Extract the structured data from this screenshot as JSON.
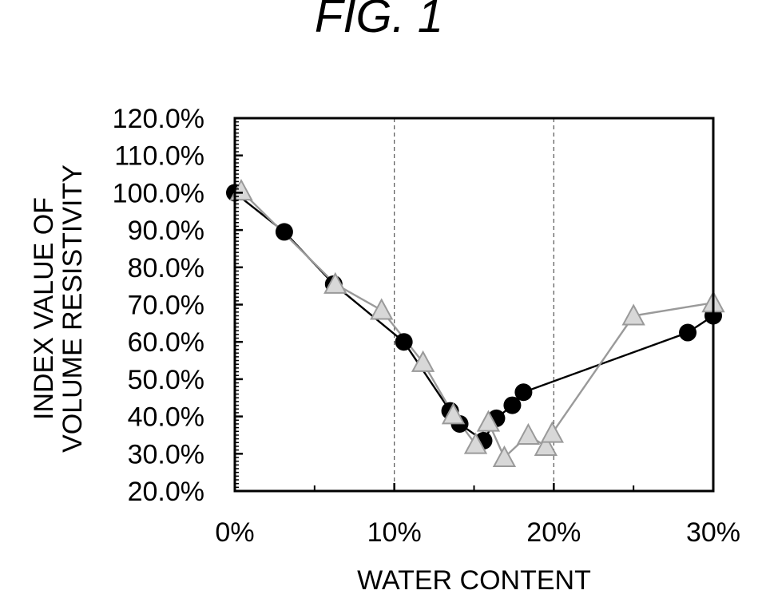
{
  "figure": {
    "title": "FIG. 1"
  },
  "chart_data": {
    "type": "line",
    "title": "FIG. 1",
    "xlabel": "WATER CONTENT",
    "ylabel_lines": [
      "INDEX VALUE OF",
      "VOLUME RESISTIVITY"
    ],
    "xlim": [
      0,
      30
    ],
    "ylim": [
      20,
      120
    ],
    "x_ticks": [
      0,
      10,
      20,
      30
    ],
    "x_tick_labels": [
      "0%",
      "10%",
      "20%",
      "30%"
    ],
    "y_ticks": [
      20,
      30,
      40,
      50,
      60,
      70,
      80,
      90,
      100,
      110,
      120
    ],
    "y_tick_labels": [
      "20.0%",
      "30.0%",
      "40.0%",
      "50.0%",
      "60.0%",
      "70.0%",
      "80.0%",
      "90.0%",
      "100.0%",
      "110.0%",
      "120.0%"
    ],
    "vertical_gridlines": [
      10,
      20
    ],
    "series": [
      {
        "name": "circle-series",
        "marker": "circle",
        "color": "#000000",
        "points": [
          [
            0,
            100
          ],
          [
            3.1,
            89.5
          ],
          [
            6.2,
            75.5
          ],
          [
            10.6,
            60
          ],
          [
            13.5,
            41.5
          ],
          [
            14.1,
            38
          ],
          [
            15.6,
            33.5
          ],
          [
            16.4,
            39.5
          ],
          [
            17.4,
            43
          ],
          [
            18.1,
            46.5
          ],
          [
            28.4,
            62.5
          ],
          [
            30,
            67
          ]
        ]
      },
      {
        "name": "triangle-series",
        "marker": "triangle",
        "color": "#9a9a9a",
        "points": [
          [
            0.4,
            100.5
          ],
          [
            6.3,
            75.5
          ],
          [
            9.2,
            68.5
          ],
          [
            11.8,
            54.5
          ],
          [
            13.7,
            40.5
          ],
          [
            15.1,
            32.5
          ],
          [
            15.9,
            38.5
          ],
          [
            16.9,
            29
          ],
          [
            18.4,
            35
          ],
          [
            19.5,
            32
          ],
          [
            19.9,
            35.5
          ],
          [
            25,
            67
          ],
          [
            30,
            70.5
          ]
        ]
      }
    ]
  }
}
